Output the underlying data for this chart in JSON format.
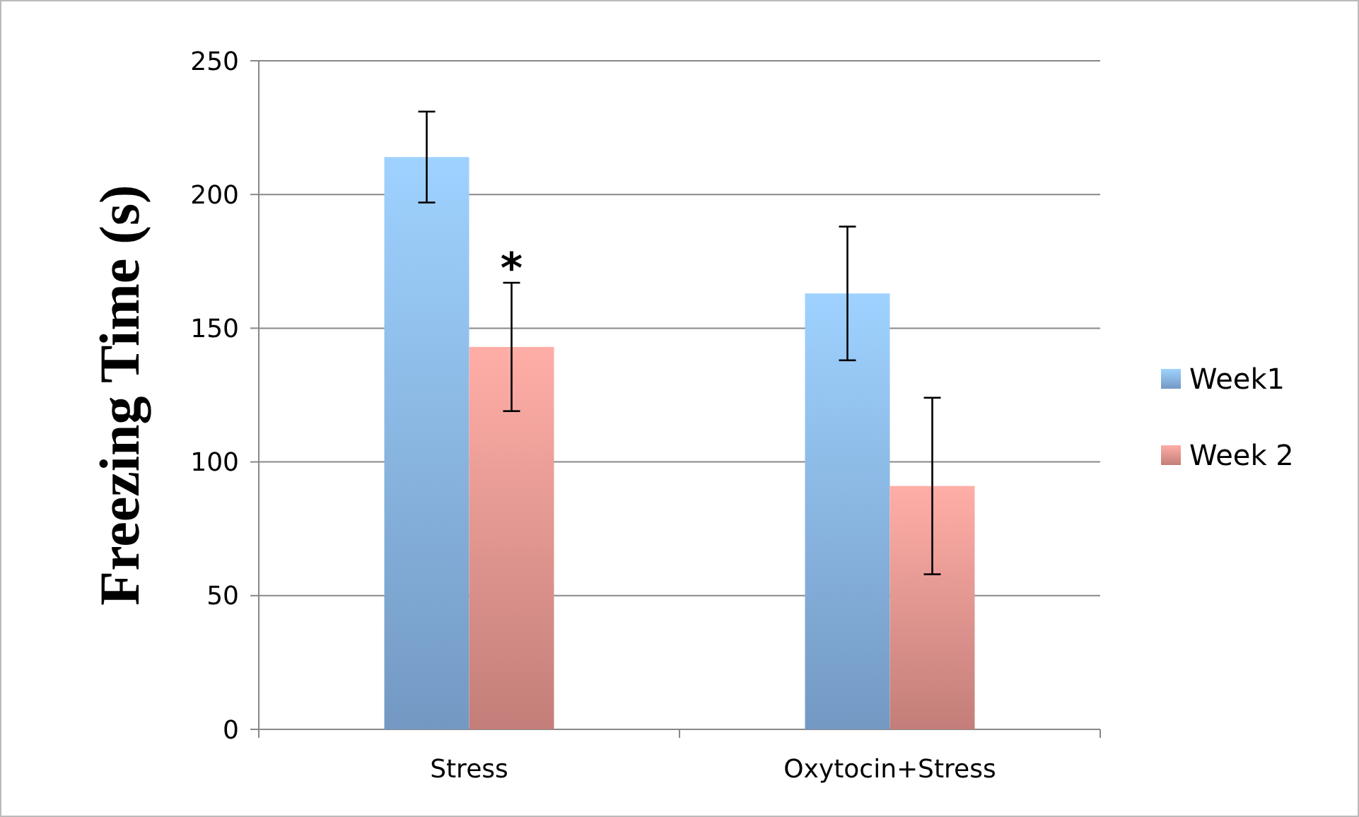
{
  "chart_data": {
    "type": "bar",
    "ylabel": "Freezing Time (s)",
    "categories": [
      "Stress",
      "Oxytocin+Stress"
    ],
    "series": [
      {
        "name": "Week1",
        "color": "#8fbdf2",
        "values": [
          214,
          163
        ],
        "errors": [
          17,
          25
        ]
      },
      {
        "name": "Week 2",
        "color": "#f29c96",
        "values": [
          143,
          91
        ],
        "errors": [
          24,
          33
        ]
      }
    ],
    "ylim": [
      0,
      250
    ],
    "yticks": [
      0,
      50,
      100,
      150,
      200,
      250
    ],
    "grid": "y",
    "legend": "right",
    "annotations": [
      {
        "text": "*",
        "x": "Stress",
        "y": 178
      }
    ]
  }
}
